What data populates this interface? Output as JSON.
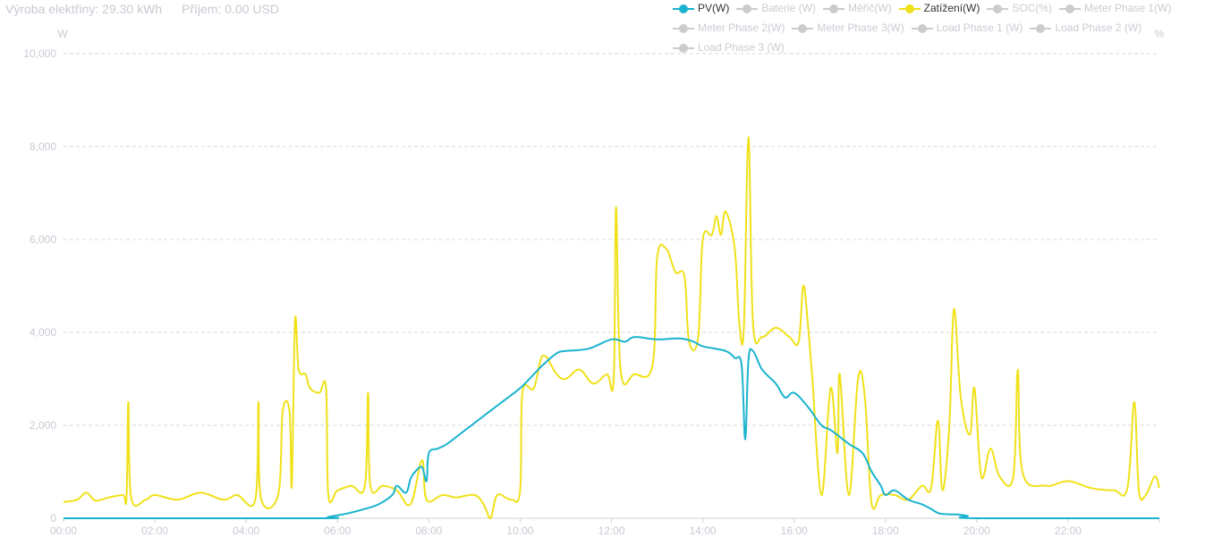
{
  "summary": {
    "production_label": "Výroba elektřiny:",
    "production_value": "29.30 kWh",
    "income_label": "Příjem:",
    "income_value": "0.00 USD"
  },
  "legend": [
    [
      {
        "label": "PV(W)",
        "color": "#1ab3cf",
        "active": true
      },
      {
        "label": "Baterie (W)",
        "color": "#cccccc",
        "active": false
      },
      {
        "label": "Měřič(W)",
        "color": "#cccccc",
        "active": false
      },
      {
        "label": "Zatížení(W)",
        "color": "#f0e11a",
        "active": true
      },
      {
        "label": "SOC(%)",
        "color": "#cccccc",
        "active": false
      },
      {
        "label": "Meter Phase 1(W)",
        "color": "#cccccc",
        "active": false
      }
    ],
    [
      {
        "label": "Meter Phase 2(W)",
        "color": "#cccccc",
        "active": false
      },
      {
        "label": "Meter Phase 3(W)",
        "color": "#cccccc",
        "active": false
      },
      {
        "label": "Load Phase 1 (W)",
        "color": "#cccccc",
        "active": false
      },
      {
        "label": "Load Phase 2 (W)",
        "color": "#cccccc",
        "active": false
      }
    ],
    [
      {
        "label": "Load Phase 3 (W)",
        "color": "#cccccc",
        "active": false
      }
    ]
  ],
  "chart_data": {
    "type": "line",
    "ylabel": "W",
    "y2label": "%",
    "ylim": [
      0,
      10000
    ],
    "yticks": [
      0,
      2000,
      4000,
      6000,
      8000,
      10000
    ],
    "ytick_labels": [
      "0",
      "2,000",
      "4,000",
      "6,000",
      "8,000",
      "10,000"
    ],
    "xlim": [
      0,
      24
    ],
    "xticks": [
      0,
      2,
      4,
      6,
      8,
      10,
      12,
      14,
      16,
      18,
      20,
      22
    ],
    "xtick_labels": [
      "00:00",
      "02:00",
      "04:00",
      "06:00",
      "08:00",
      "10:00",
      "12:00",
      "14:00",
      "16:00",
      "18:00",
      "20:00",
      "22:00"
    ],
    "grid": true,
    "legend_position": "top-right",
    "series": [
      {
        "name": "PV(W)",
        "color": "#1ab3cf",
        "points": [
          [
            0,
            0
          ],
          [
            5.5,
            0
          ],
          [
            5.8,
            30
          ],
          [
            6.2,
            100
          ],
          [
            6.6,
            200
          ],
          [
            6.9,
            300
          ],
          [
            7.2,
            500
          ],
          [
            7.3,
            700
          ],
          [
            7.5,
            550
          ],
          [
            7.6,
            850
          ],
          [
            7.7,
            1000
          ],
          [
            7.85,
            1100
          ],
          [
            7.95,
            800
          ],
          [
            8.0,
            1400
          ],
          [
            8.2,
            1500
          ],
          [
            8.4,
            1600
          ],
          [
            8.8,
            1900
          ],
          [
            9.2,
            2200
          ],
          [
            9.6,
            2500
          ],
          [
            10.0,
            2800
          ],
          [
            10.3,
            3100
          ],
          [
            10.5,
            3300
          ],
          [
            10.8,
            3550
          ],
          [
            11.0,
            3600
          ],
          [
            11.5,
            3650
          ],
          [
            12.0,
            3850
          ],
          [
            12.3,
            3800
          ],
          [
            12.5,
            3900
          ],
          [
            13.0,
            3850
          ],
          [
            13.5,
            3870
          ],
          [
            13.8,
            3800
          ],
          [
            14.0,
            3700
          ],
          [
            14.5,
            3600
          ],
          [
            14.7,
            3450
          ],
          [
            14.85,
            3300
          ],
          [
            14.93,
            1700
          ],
          [
            15.0,
            3400
          ],
          [
            15.1,
            3600
          ],
          [
            15.3,
            3200
          ],
          [
            15.6,
            2900
          ],
          [
            15.8,
            2600
          ],
          [
            16.0,
            2700
          ],
          [
            16.3,
            2400
          ],
          [
            16.6,
            2000
          ],
          [
            16.8,
            1900
          ],
          [
            17.2,
            1600
          ],
          [
            17.5,
            1400
          ],
          [
            17.7,
            1000
          ],
          [
            17.9,
            700
          ],
          [
            18.0,
            500
          ],
          [
            18.2,
            600
          ],
          [
            18.5,
            400
          ],
          [
            18.8,
            300
          ],
          [
            19.0,
            200
          ],
          [
            19.2,
            100
          ],
          [
            19.6,
            80
          ],
          [
            19.8,
            50
          ],
          [
            20.0,
            0
          ],
          [
            24.0,
            0
          ]
        ]
      },
      {
        "name": "Zatížení(W)",
        "color": "#f0e11a",
        "points": [
          [
            0,
            350
          ],
          [
            0.3,
            400
          ],
          [
            0.5,
            550
          ],
          [
            0.7,
            380
          ],
          [
            1.0,
            450
          ],
          [
            1.3,
            500
          ],
          [
            1.38,
            450
          ],
          [
            1.42,
            2500
          ],
          [
            1.48,
            450
          ],
          [
            1.8,
            400
          ],
          [
            2.0,
            500
          ],
          [
            2.5,
            400
          ],
          [
            3.0,
            550
          ],
          [
            3.5,
            400
          ],
          [
            3.8,
            500
          ],
          [
            4.2,
            400
          ],
          [
            4.27,
            2500
          ],
          [
            4.32,
            450
          ],
          [
            4.7,
            500
          ],
          [
            4.8,
            2300
          ],
          [
            4.95,
            2300
          ],
          [
            5.0,
            700
          ],
          [
            5.07,
            4250
          ],
          [
            5.15,
            3200
          ],
          [
            5.3,
            3100
          ],
          [
            5.4,
            2800
          ],
          [
            5.6,
            2700
          ],
          [
            5.75,
            2800
          ],
          [
            5.8,
            500
          ],
          [
            6.0,
            600
          ],
          [
            6.3,
            700
          ],
          [
            6.6,
            700
          ],
          [
            6.67,
            2700
          ],
          [
            6.72,
            700
          ],
          [
            7.0,
            700
          ],
          [
            7.3,
            600
          ],
          [
            7.6,
            300
          ],
          [
            7.85,
            1250
          ],
          [
            7.95,
            400
          ],
          [
            8.3,
            500
          ],
          [
            8.6,
            450
          ],
          [
            9.0,
            500
          ],
          [
            9.2,
            300
          ],
          [
            9.35,
            0
          ],
          [
            9.5,
            500
          ],
          [
            9.8,
            400
          ],
          [
            10.0,
            600
          ],
          [
            10.05,
            2700
          ],
          [
            10.3,
            2800
          ],
          [
            10.5,
            3500
          ],
          [
            10.8,
            3100
          ],
          [
            11.0,
            3000
          ],
          [
            11.3,
            3200
          ],
          [
            11.6,
            2900
          ],
          [
            11.9,
            3100
          ],
          [
            12.05,
            3000
          ],
          [
            12.1,
            6700
          ],
          [
            12.2,
            3200
          ],
          [
            12.5,
            3100
          ],
          [
            12.9,
            3300
          ],
          [
            13.0,
            5600
          ],
          [
            13.2,
            5800
          ],
          [
            13.4,
            5300
          ],
          [
            13.6,
            5200
          ],
          [
            13.7,
            3800
          ],
          [
            13.9,
            3900
          ],
          [
            14.0,
            6000
          ],
          [
            14.2,
            6100
          ],
          [
            14.3,
            6500
          ],
          [
            14.4,
            6100
          ],
          [
            14.5,
            6600
          ],
          [
            14.7,
            5800
          ],
          [
            14.8,
            4200
          ],
          [
            14.9,
            4100
          ],
          [
            15.0,
            8200
          ],
          [
            15.1,
            4200
          ],
          [
            15.3,
            3900
          ],
          [
            15.6,
            4100
          ],
          [
            15.9,
            3900
          ],
          [
            16.1,
            3800
          ],
          [
            16.2,
            5000
          ],
          [
            16.3,
            4200
          ],
          [
            16.4,
            3000
          ],
          [
            16.6,
            500
          ],
          [
            16.8,
            2800
          ],
          [
            16.95,
            1400
          ],
          [
            17.0,
            3100
          ],
          [
            17.2,
            500
          ],
          [
            17.4,
            3000
          ],
          [
            17.55,
            2600
          ],
          [
            17.7,
            300
          ],
          [
            17.9,
            500
          ],
          [
            18.2,
            500
          ],
          [
            18.5,
            400
          ],
          [
            18.8,
            700
          ],
          [
            19.0,
            650
          ],
          [
            19.15,
            2100
          ],
          [
            19.25,
            600
          ],
          [
            19.4,
            2000
          ],
          [
            19.5,
            4500
          ],
          [
            19.65,
            2600
          ],
          [
            19.85,
            1800
          ],
          [
            19.95,
            2800
          ],
          [
            20.1,
            900
          ],
          [
            20.3,
            1500
          ],
          [
            20.5,
            900
          ],
          [
            20.8,
            900
          ],
          [
            20.9,
            3200
          ],
          [
            21.0,
            1000
          ],
          [
            21.5,
            700
          ],
          [
            22.0,
            800
          ],
          [
            22.5,
            650
          ],
          [
            23.0,
            600
          ],
          [
            23.3,
            650
          ],
          [
            23.45,
            2500
          ],
          [
            23.55,
            600
          ],
          [
            23.7,
            500
          ],
          [
            23.9,
            900
          ],
          [
            24.0,
            650
          ]
        ]
      }
    ]
  }
}
